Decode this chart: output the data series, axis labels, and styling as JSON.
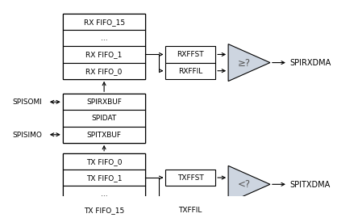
{
  "bg_color": "#ffffff",
  "box_color": "#ffffff",
  "box_edge": "#000000",
  "triangle_fill": "#cdd5e0",
  "triangle_edge": "#000000",
  "text_color": "#000000",
  "rx_fifo_boxes": [
    "RX FIFO_15",
    "...",
    "RX FIFO_1",
    "RX FIFO_0"
  ],
  "mid_boxes": [
    "SPIRXBUF",
    "SPIDAT",
    "SPITXBUF"
  ],
  "tx_fifo_boxes": [
    "TX FIFO_0",
    "TX FIFO_1",
    "...",
    "TX FIFO_15"
  ],
  "rxffst_box": {
    "label": "RXFFST"
  },
  "rxffil_box": {
    "label": "RXFFIL"
  },
  "txffst_box": {
    "label": "TXFFST"
  },
  "txffil_box": {
    "label": "TXFFIL"
  },
  "rx_triangle_label": "≥?",
  "tx_triangle_label": "<?",
  "spirxdma_label": "SPIRXDMA",
  "spitxdma_label": "SPITXDMA",
  "spisomi_label": "SPISOMI",
  "spisimo_label": "SPISIMO",
  "fontsize": 6.5,
  "tri_label_fontsize": 8.5,
  "out_label_fontsize": 7.0
}
